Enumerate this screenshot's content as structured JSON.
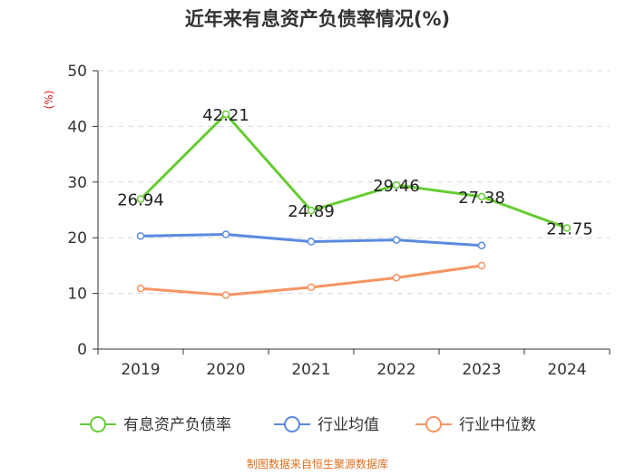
{
  "chart_data": {
    "type": "line",
    "title": "近年来有息资产负债率情况(%)",
    "ylabel": "(%)",
    "categories": [
      "2019",
      "2020",
      "2021",
      "2022",
      "2023",
      "2024"
    ],
    "ylim": [
      0,
      50
    ],
    "yticks": [
      0,
      10,
      20,
      30,
      40,
      50
    ],
    "grid": true,
    "legend_position": "bottom",
    "series": [
      {
        "name": "有息资产负债率",
        "color": "#66cc33",
        "values": [
          26.94,
          42.21,
          24.89,
          29.46,
          27.38,
          21.75
        ],
        "show_labels": true
      },
      {
        "name": "行业均值",
        "color": "#5b8ae0",
        "values": [
          20.3,
          20.6,
          19.3,
          19.6,
          18.6,
          null
        ],
        "show_labels": false
      },
      {
        "name": "行业中位数",
        "color": "#f79462",
        "values": [
          10.9,
          9.7,
          11.1,
          12.8,
          15.0,
          null
        ],
        "show_labels": false
      }
    ]
  },
  "source_text": "制图数据来自恒生聚源数据库",
  "colors": {
    "unit_label": "#e02020",
    "source_text": "#e07020",
    "axis": "#333333",
    "grid": "#d9d9d9"
  }
}
